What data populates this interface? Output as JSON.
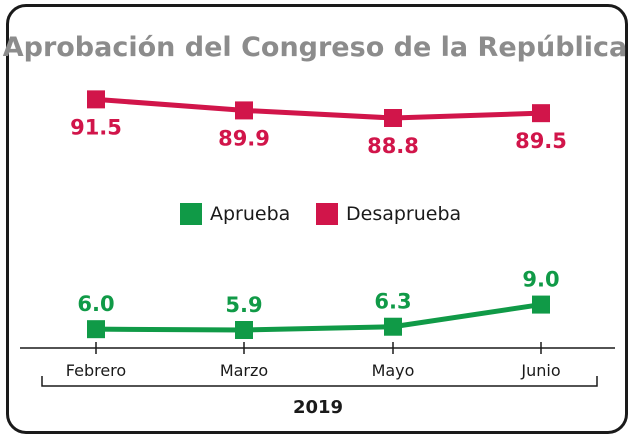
{
  "chart_data": {
    "type": "line",
    "title": "Aprobación del Congreso de la República",
    "categories": [
      "Febrero",
      "Marzo",
      "Mayo",
      "Junio"
    ],
    "x_group_label": "2019",
    "series": [
      {
        "name": "Aprueba",
        "color": "#109a47",
        "values": [
          6.0,
          5.9,
          6.3,
          9.0
        ],
        "labels": [
          "6.0",
          "5.9",
          "6.3",
          "9.0"
        ]
      },
      {
        "name": "Desaprueba",
        "color": "#d1154a",
        "values": [
          91.5,
          89.9,
          88.8,
          89.5
        ],
        "labels": [
          "91.5",
          "89.9",
          "88.8",
          "89.5"
        ]
      }
    ],
    "legend_position": "center",
    "grid": false
  }
}
